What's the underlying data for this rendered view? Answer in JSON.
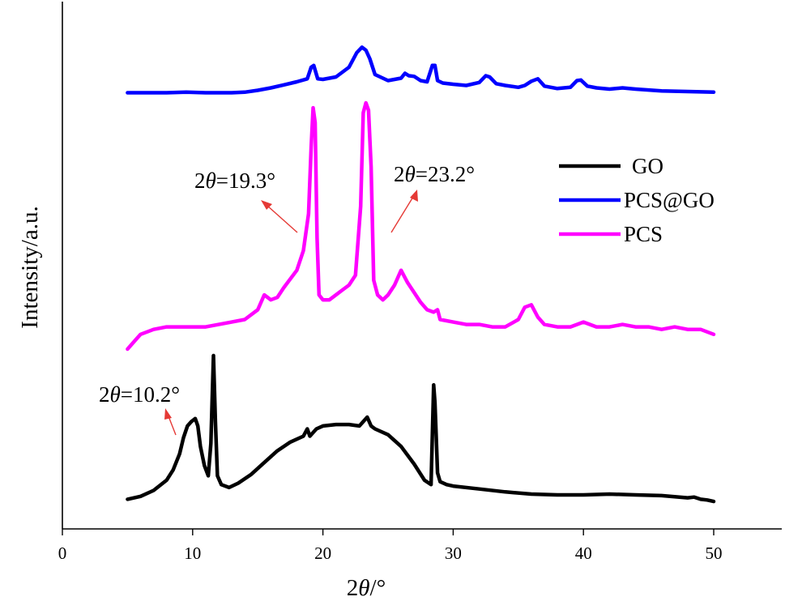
{
  "chart_data": {
    "type": "line",
    "title": "",
    "xlabel": "2θ/°",
    "xlabel_parts": [
      "2",
      "θ",
      "/°"
    ],
    "ylabel": "Intensity/a.u.",
    "xlim": [
      0,
      55
    ],
    "xticks": [
      0,
      10,
      20,
      30,
      40,
      50
    ],
    "xtick_labels": [
      "0",
      "10",
      "20",
      "30",
      "40",
      "50"
    ],
    "y_ticks_shown": false,
    "grid": false,
    "legend_position": "right",
    "series": [
      {
        "name": "GO",
        "color": "#000000",
        "x": [
          5,
          6,
          7,
          8,
          8.5,
          9,
          9.3,
          9.6,
          9.9,
          10.2,
          10.4,
          10.6,
          10.9,
          11.2,
          11.4,
          11.6,
          11.75,
          11.9,
          12.2,
          12.8,
          13.5,
          14.5,
          15.5,
          16.5,
          17.5,
          18.5,
          18.8,
          19.0,
          19.2,
          19.5,
          20,
          21,
          22,
          22.8,
          23.2,
          23.4,
          23.7,
          24,
          25,
          26,
          27,
          27.8,
          28.3,
          28.5,
          28.6,
          28.8,
          29,
          29.5,
          30,
          32,
          34,
          36,
          38,
          40,
          42,
          44,
          46,
          48,
          48.5,
          49,
          49.5,
          50
        ],
        "y": [
          2,
          4,
          8,
          15,
          22,
          33,
          44,
          52,
          55,
          57,
          52,
          38,
          25,
          18,
          40,
          100,
          55,
          18,
          12,
          10,
          13,
          19,
          27,
          35,
          41,
          45,
          50,
          45,
          47,
          50,
          52,
          53,
          53,
          52,
          56,
          58,
          52,
          50,
          46,
          38,
          26,
          15,
          12,
          80,
          68,
          20,
          14,
          12,
          11,
          9,
          7,
          5.5,
          5,
          5,
          5.5,
          5,
          4.5,
          3,
          3.5,
          2,
          1.5,
          0.5
        ]
      },
      {
        "name": "PCS@GO",
        "color": "#0000ff",
        "x": [
          5,
          6,
          8,
          9.5,
          11,
          12,
          13,
          14,
          15,
          16,
          17,
          18,
          18.8,
          19.1,
          19.3,
          19.6,
          20,
          21,
          22,
          22.6,
          23.0,
          23.3,
          23.6,
          24,
          25,
          26,
          26.3,
          26.6,
          27,
          27.5,
          28,
          28.4,
          28.6,
          28.8,
          29.2,
          30,
          31,
          32,
          32.5,
          32.8,
          33.3,
          34,
          35,
          35.5,
          36,
          36.5,
          37,
          38,
          39,
          39.5,
          39.8,
          40.3,
          41,
          42,
          43,
          44,
          46,
          48,
          50
        ],
        "y": [
          10,
          10,
          10,
          11,
          10,
          10,
          10,
          11,
          14,
          18,
          23,
          28,
          33,
          52,
          55,
          33,
          32,
          36,
          52,
          76,
          85,
          80,
          66,
          40,
          30,
          34,
          42,
          38,
          37,
          30,
          28,
          55,
          55,
          30,
          26,
          24,
          22,
          27,
          38,
          36,
          25,
          22,
          19,
          22,
          29,
          33,
          21,
          17,
          19,
          30,
          31,
          21,
          18,
          16,
          18,
          16,
          13,
          12,
          11
        ]
      },
      {
        "name": "PCS",
        "color": "#ff00ff",
        "x": [
          5,
          5.5,
          6,
          7,
          8,
          9,
          10,
          11,
          12,
          13,
          14,
          15,
          15.5,
          16,
          16.5,
          17,
          18,
          18.5,
          18.9,
          19.1,
          19.25,
          19.4,
          19.55,
          19.7,
          20,
          20.5,
          21,
          21.5,
          22,
          22.5,
          22.9,
          23.1,
          23.3,
          23.5,
          23.7,
          23.9,
          24.2,
          24.6,
          25,
          25.5,
          26,
          26.5,
          27,
          27.5,
          28,
          28.5,
          28.8,
          29,
          30,
          31,
          32,
          33,
          34,
          35,
          35.5,
          36,
          36.5,
          37,
          38,
          39,
          39.5,
          40,
          41,
          42,
          43,
          44,
          45,
          46,
          47,
          48,
          49,
          50
        ],
        "y": [
          0,
          3,
          6,
          8,
          9,
          9,
          9,
          9,
          10,
          11,
          12,
          16,
          22,
          20,
          21,
          25,
          32,
          40,
          55,
          82,
          98,
          92,
          45,
          22,
          20,
          20,
          22,
          24,
          26,
          30,
          58,
          96,
          100,
          97,
          74,
          28,
          22,
          20,
          22,
          26,
          32,
          27,
          23,
          19,
          16,
          15,
          16,
          12,
          11,
          10,
          10,
          9,
          9,
          12,
          17,
          18,
          13,
          10,
          9,
          9,
          10,
          11,
          9,
          9,
          10,
          9,
          9,
          8,
          9,
          8,
          8,
          6
        ]
      }
    ],
    "annotations": [
      {
        "parts": [
          "2",
          "θ",
          "=19.3°"
        ],
        "target_x": 19.3
      },
      {
        "parts": [
          "2",
          "θ",
          "=23.2°"
        ],
        "target_x": 23.2
      },
      {
        "parts": [
          "2",
          "θ",
          "=10.2°"
        ],
        "target_x": 10.2
      }
    ]
  }
}
